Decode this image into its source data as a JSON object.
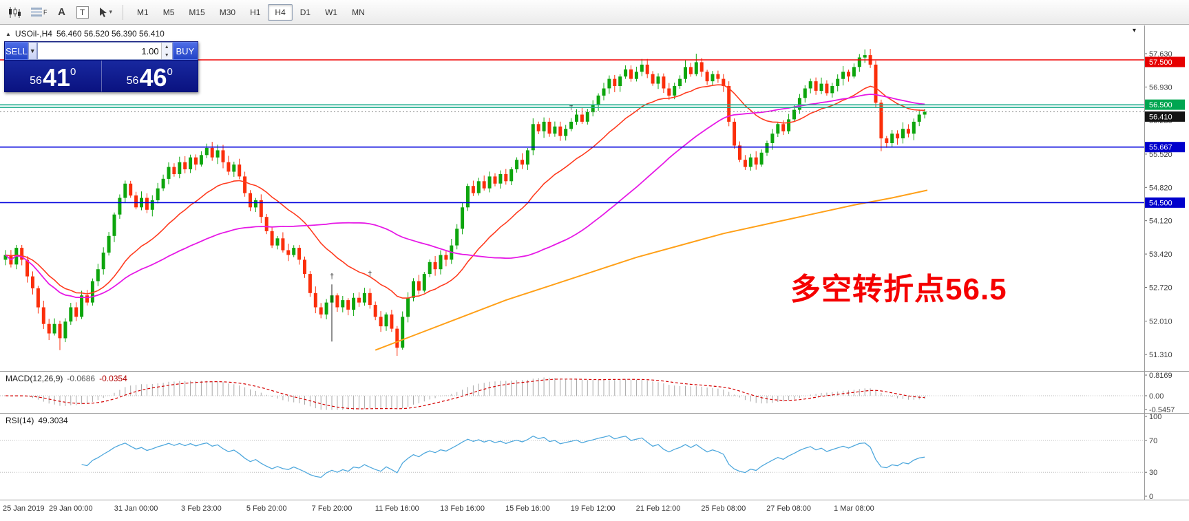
{
  "toolbar": {
    "timeframes": [
      {
        "label": "M1",
        "active": false
      },
      {
        "label": "M5",
        "active": false
      },
      {
        "label": "M15",
        "active": false
      },
      {
        "label": "M30",
        "active": false
      },
      {
        "label": "H1",
        "active": false
      },
      {
        "label": "H4",
        "active": true
      },
      {
        "label": "D1",
        "active": false
      },
      {
        "label": "W1",
        "active": false
      },
      {
        "label": "MN",
        "active": false
      }
    ],
    "indicators_tag": "F",
    "text_label_glyph": "A",
    "text_box_glyph": "T"
  },
  "chart_header": {
    "collapse_glyph": "▲",
    "symbol_period": "USOil-,H4",
    "ohlc": "56.460 56.520 56.390 56.410"
  },
  "trade_panel": {
    "sell_label": "SELL",
    "buy_label": "BUY",
    "volume": "1.00",
    "sell_price": {
      "small": "56",
      "big": "41",
      "sup": "0"
    },
    "buy_price": {
      "small": "56",
      "big": "46",
      "sup": "0"
    }
  },
  "annotation": {
    "text": "多空转折点56.5",
    "color": "#f50000"
  },
  "chart_data": {
    "type": "candlestick",
    "symbol": "USOil-",
    "period": "H4",
    "up_color": "#0da50d",
    "down_color": "#fb2e0a",
    "first_open": 53.3,
    "closes": [
      53.4,
      53.2,
      53.55,
      53.3,
      52.95,
      52.7,
      52.3,
      51.95,
      51.75,
      51.95,
      51.65,
      52.0,
      52.3,
      52.1,
      52.55,
      52.4,
      52.85,
      53.1,
      53.45,
      53.8,
      54.25,
      54.6,
      54.9,
      54.65,
      54.4,
      54.6,
      54.35,
      54.55,
      54.8,
      55.0,
      55.25,
      55.1,
      55.35,
      55.2,
      55.45,
      55.3,
      55.5,
      55.65,
      55.45,
      55.6,
      55.35,
      55.15,
      55.3,
      55.05,
      54.7,
      54.4,
      54.55,
      54.2,
      53.9,
      53.6,
      53.75,
      53.5,
      53.4,
      53.55,
      53.3,
      53.0,
      52.6,
      52.3,
      52.15,
      52.4,
      52.55,
      52.3,
      52.45,
      52.25,
      52.5,
      52.4,
      52.6,
      52.35,
      52.1,
      51.9,
      52.15,
      51.85,
      51.45,
      52.1,
      52.5,
      52.85,
      52.65,
      53.0,
      53.25,
      53.1,
      53.4,
      53.3,
      53.6,
      53.95,
      54.4,
      54.85,
      54.7,
      54.95,
      54.8,
      55.05,
      54.9,
      55.1,
      54.95,
      55.2,
      55.4,
      55.3,
      55.6,
      56.15,
      56.0,
      56.2,
      55.95,
      56.1,
      55.9,
      56.05,
      56.2,
      56.35,
      56.2,
      56.4,
      56.55,
      56.75,
      56.9,
      57.1,
      56.95,
      57.15,
      57.3,
      57.1,
      57.25,
      57.4,
      57.2,
      57.0,
      57.15,
      56.9,
      56.75,
      56.95,
      57.1,
      57.35,
      57.2,
      57.45,
      57.25,
      57.05,
      57.2,
      57.1,
      56.95,
      56.2,
      55.7,
      55.4,
      55.25,
      55.45,
      55.3,
      55.55,
      55.75,
      55.95,
      56.15,
      56.0,
      56.25,
      56.45,
      56.7,
      56.9,
      57.05,
      56.85,
      57.0,
      56.8,
      56.95,
      57.1,
      57.25,
      57.15,
      57.35,
      57.55,
      57.6,
      57.4,
      56.6,
      55.85,
      55.75,
      55.95,
      55.85,
      56.05,
      55.95,
      56.2,
      56.35,
      56.41
    ],
    "wick_overrides": {
      "10": {
        "low": 51.4
      },
      "72": {
        "low": 51.28
      },
      "117": {
        "high": 57.52
      },
      "127": {
        "high": 57.63
      },
      "158": {
        "high": 57.72
      },
      "161": {
        "low": 55.58
      }
    },
    "y_ticks": [
      {
        "label": "57.630",
        "v": 57.63
      },
      {
        "label": "56.930",
        "v": 56.93
      },
      {
        "label": "56.230",
        "v": 56.23
      },
      {
        "label": "55.520",
        "v": 55.52
      },
      {
        "label": "54.820",
        "v": 54.82
      },
      {
        "label": "54.120",
        "v": 54.12
      },
      {
        "label": "53.420",
        "v": 53.42
      },
      {
        "label": "52.720",
        "v": 52.72
      },
      {
        "label": "52.010",
        "v": 52.01
      },
      {
        "label": "51.310",
        "v": 51.31
      }
    ],
    "hlines": [
      {
        "price": 57.5,
        "color": "#f00000",
        "w": 1.4,
        "badge": "57.500",
        "bg": "#e60000",
        "dy": 3
      },
      {
        "price": 56.555,
        "color": "#1fae8e",
        "w": 1.6
      },
      {
        "price": 56.5,
        "color": "#1fae8e",
        "w": 1.6,
        "badge": "56.500",
        "bg": "#00a651",
        "dy": -4
      },
      {
        "price": 56.41,
        "color": "#808080",
        "w": 1,
        "dash": "2,3",
        "badge": "56.410",
        "bg": "#141414",
        "dy": 7
      },
      {
        "price": 55.667,
        "color": "#0000dd",
        "w": 1.6,
        "badge": "55.667",
        "bg": "#0000cc",
        "dy": 0
      },
      {
        "price": 54.5,
        "color": "#0000dd",
        "w": 1.6,
        "badge": "54.500",
        "bg": "#0000cc",
        "dy": 0
      }
    ],
    "ma": {
      "red": {
        "type": "ema",
        "period": 21,
        "color": "#ff3b1f"
      },
      "magenta": {
        "type": "sma",
        "period": 50,
        "color": "#e619e6"
      },
      "orange": {
        "color": "#ffa018",
        "points": [
          [
            68,
            51.4
          ],
          [
            76,
            51.75
          ],
          [
            84,
            52.1
          ],
          [
            92,
            52.45
          ],
          [
            100,
            52.75
          ],
          [
            108,
            53.05
          ],
          [
            116,
            53.35
          ],
          [
            124,
            53.6
          ],
          [
            132,
            53.85
          ],
          [
            140,
            54.05
          ],
          [
            148,
            54.25
          ],
          [
            156,
            54.45
          ],
          [
            163,
            54.6
          ],
          [
            169.5,
            54.76
          ]
        ]
      }
    },
    "markers": [
      {
        "bar": 60,
        "price": 52.9
      },
      {
        "bar": 67,
        "price": 52.95
      },
      {
        "bar": 104,
        "price": 56.45
      }
    ],
    "vline": {
      "bar": 60,
      "from": 52.78,
      "to": 51.58
    },
    "time_labels": [
      {
        "bar": 0,
        "text": "25 Jan 2019"
      },
      {
        "bar": 12,
        "text": "29 Jan 00:00"
      },
      {
        "bar": 24,
        "text": "31 Jan 00:00"
      },
      {
        "bar": 36,
        "text": "3 Feb 23:00"
      },
      {
        "bar": 48,
        "text": "5 Feb 20:00"
      },
      {
        "bar": 60,
        "text": "7 Feb 20:00"
      },
      {
        "bar": 72,
        "text": "11 Feb 16:00"
      },
      {
        "bar": 84,
        "text": "13 Feb 16:00"
      },
      {
        "bar": 96,
        "text": "15 Feb 16:00"
      },
      {
        "bar": 108,
        "text": "19 Feb 12:00"
      },
      {
        "bar": 120,
        "text": "21 Feb 12:00"
      },
      {
        "bar": 132,
        "text": "25 Feb 08:00"
      },
      {
        "bar": 144,
        "text": "27 Feb 08:00"
      },
      {
        "bar": 156,
        "text": "1 Mar 08:00"
      }
    ],
    "macd": {
      "title": "MACD(12,26,9)",
      "value_main": "-0.0686",
      "value_signal": "-0.0354",
      "fast": 12,
      "slow": 26,
      "signal": 9,
      "scale": [
        {
          "label": "0.8169",
          "v": 0.8169
        },
        {
          "label": "0.00",
          "v": 0
        },
        {
          "label": "-0.5457",
          "v": -0.5457
        }
      ],
      "hist_color": "#a8a8a8",
      "line_color": "#d40000"
    },
    "rsi": {
      "title": "RSI(14)",
      "value": "49.3034",
      "period": 14,
      "scale": [
        {
          "label": "100",
          "v": 100
        },
        {
          "label": "70",
          "v": 70
        },
        {
          "label": "30",
          "v": 30
        },
        {
          "label": "0",
          "v": 0
        }
      ],
      "level_lines": [
        70,
        30
      ],
      "color": "#4fa8dd"
    }
  }
}
